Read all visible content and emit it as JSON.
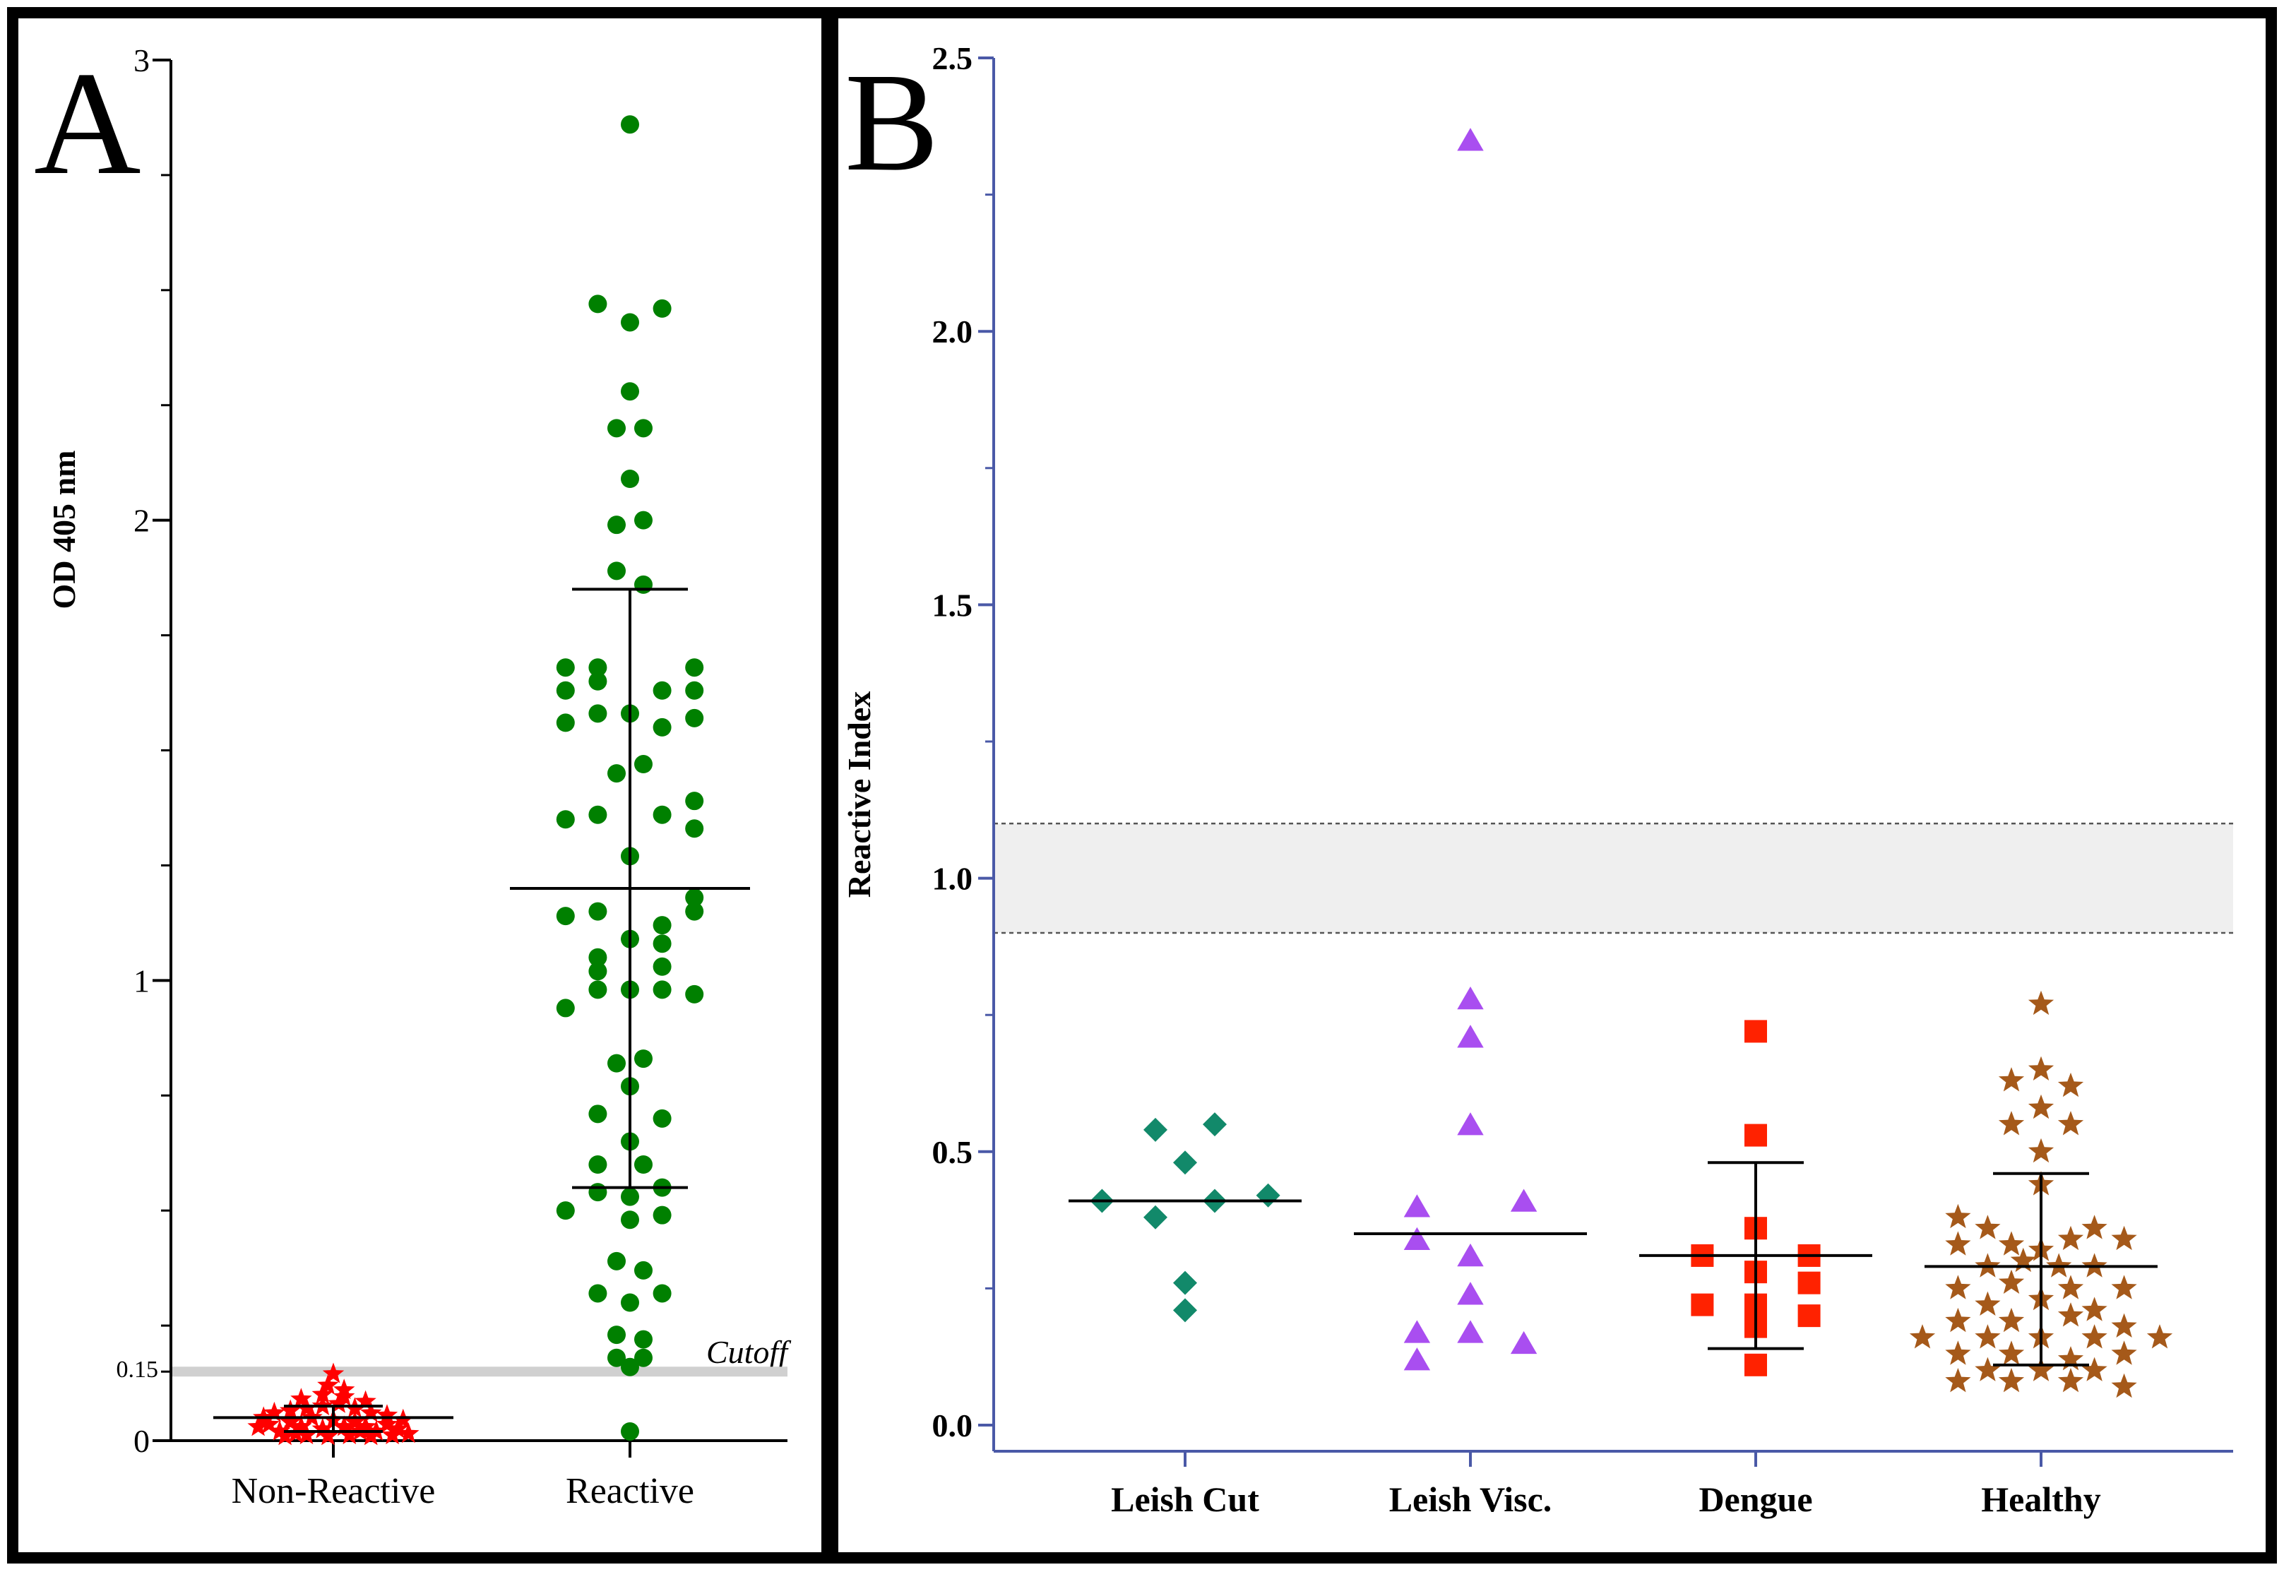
{
  "chart_data": [
    {
      "panel": "A",
      "type": "scatter",
      "panel_label": "A",
      "ylabel": "OD 405 nm",
      "ylim": [
        0,
        3
      ],
      "yticks": [
        "0",
        "1",
        "2",
        "3"
      ],
      "cutoff_tick_label": "0.15",
      "cutoff_value": 0.15,
      "cutoff_label": "Cutoff",
      "categories": [
        "Non-Reactive",
        "Reactive"
      ],
      "colors": {
        "Non-Reactive": "#ff0000",
        "Reactive": "#008000"
      },
      "markers": {
        "Non-Reactive": "star",
        "Reactive": "circle"
      },
      "summary": [
        {
          "group": "Non-Reactive",
          "mean": 0.05,
          "sd_low": 0.02,
          "sd_high": 0.075
        },
        {
          "group": "Reactive",
          "mean": 1.2,
          "sd_low": 0.55,
          "sd_high": 1.85
        }
      ],
      "series": [
        {
          "name": "Non-Reactive",
          "points": [
            [
              -0.28,
              0.03
            ],
            [
              -0.24,
              0.035
            ],
            [
              -0.2,
              0.02
            ],
            [
              -0.16,
              0.04
            ],
            [
              -0.12,
              0.03
            ],
            [
              -0.08,
              0.05
            ],
            [
              -0.04,
              0.025
            ],
            [
              0.0,
              0.045
            ],
            [
              0.04,
              0.03
            ],
            [
              0.08,
              0.04
            ],
            [
              0.12,
              0.03
            ],
            [
              0.16,
              0.02
            ],
            [
              0.2,
              0.035
            ],
            [
              0.24,
              0.025
            ],
            [
              0.28,
              0.015
            ],
            [
              -0.22,
              0.06
            ],
            [
              -0.16,
              0.065
            ],
            [
              -0.1,
              0.07
            ],
            [
              -0.04,
              0.075
            ],
            [
              0.02,
              0.08
            ],
            [
              0.08,
              0.07
            ],
            [
              0.14,
              0.06
            ],
            [
              0.2,
              0.055
            ],
            [
              -0.12,
              0.09
            ],
            [
              -0.04,
              0.1
            ],
            [
              0.04,
              0.095
            ],
            [
              0.12,
              0.085
            ],
            [
              -0.02,
              0.12
            ],
            [
              0.04,
              0.11
            ],
            [
              0.0,
              0.145
            ],
            [
              -0.18,
              0.01
            ],
            [
              -0.1,
              0.012
            ],
            [
              -0.02,
              0.01
            ],
            [
              0.06,
              0.012
            ],
            [
              0.14,
              0.01
            ],
            [
              0.22,
              0.012
            ],
            [
              -0.26,
              0.05
            ],
            [
              0.26,
              0.045
            ],
            [
              -0.14,
              0.015
            ],
            [
              0.1,
              0.02
            ]
          ]
        },
        {
          "name": "Reactive",
          "points": [
            [
              0.0,
              2.86
            ],
            [
              -0.12,
              2.47
            ],
            [
              0.0,
              2.43
            ],
            [
              0.12,
              2.46
            ],
            [
              0.0,
              2.28
            ],
            [
              -0.05,
              2.2
            ],
            [
              0.05,
              2.2
            ],
            [
              0.0,
              2.09
            ],
            [
              -0.05,
              1.99
            ],
            [
              0.05,
              2.0
            ],
            [
              -0.05,
              1.89
            ],
            [
              0.05,
              1.86
            ],
            [
              -0.24,
              1.68
            ],
            [
              -0.12,
              1.68
            ],
            [
              0.12,
              1.63
            ],
            [
              0.24,
              1.68
            ],
            [
              -0.24,
              1.63
            ],
            [
              -0.12,
              1.65
            ],
            [
              0.24,
              1.63
            ],
            [
              -0.24,
              1.56
            ],
            [
              -0.12,
              1.58
            ],
            [
              0.0,
              1.58
            ],
            [
              0.12,
              1.55
            ],
            [
              0.24,
              1.57
            ],
            [
              -0.05,
              1.45
            ],
            [
              0.05,
              1.47
            ],
            [
              -0.24,
              1.35
            ],
            [
              -0.12,
              1.36
            ],
            [
              0.12,
              1.36
            ],
            [
              0.24,
              1.39
            ],
            [
              0.24,
              1.33
            ],
            [
              0.0,
              1.27
            ],
            [
              -0.24,
              1.14
            ],
            [
              -0.12,
              1.15
            ],
            [
              0.12,
              1.12
            ],
            [
              0.24,
              1.18
            ],
            [
              0.24,
              1.15
            ],
            [
              0.12,
              1.08
            ],
            [
              0.0,
              1.09
            ],
            [
              -0.12,
              1.05
            ],
            [
              -0.12,
              1.02
            ],
            [
              0.12,
              1.03
            ],
            [
              -0.24,
              0.94
            ],
            [
              -0.12,
              0.98
            ],
            [
              0.0,
              0.98
            ],
            [
              0.12,
              0.98
            ],
            [
              0.24,
              0.97
            ],
            [
              -0.05,
              0.82
            ],
            [
              0.05,
              0.83
            ],
            [
              0.0,
              0.77
            ],
            [
              -0.12,
              0.71
            ],
            [
              0.12,
              0.7
            ],
            [
              0.0,
              0.65
            ],
            [
              -0.12,
              0.6
            ],
            [
              0.05,
              0.6
            ],
            [
              -0.12,
              0.54
            ],
            [
              0.0,
              0.53
            ],
            [
              0.12,
              0.55
            ],
            [
              0.12,
              0.49
            ],
            [
              -0.24,
              0.5
            ],
            [
              0.0,
              0.48
            ],
            [
              -0.05,
              0.39
            ],
            [
              0.05,
              0.37
            ],
            [
              -0.12,
              0.32
            ],
            [
              0.12,
              0.32
            ],
            [
              0.0,
              0.3
            ],
            [
              -0.05,
              0.23
            ],
            [
              0.05,
              0.22
            ],
            [
              -0.05,
              0.18
            ],
            [
              0.05,
              0.18
            ],
            [
              0.0,
              0.16
            ],
            [
              0.0,
              0.02
            ]
          ]
        }
      ]
    },
    {
      "panel": "B",
      "type": "scatter",
      "panel_label": "B",
      "ylabel": "Reactive Index",
      "ylim": [
        0,
        2.5
      ],
      "yticks": [
        "0.0",
        "0.5",
        "1.0",
        "1.5",
        "2.0",
        "2.5"
      ],
      "grey_zone": [
        0.9,
        1.1
      ],
      "categories": [
        "Leish Cut",
        "Leish Visc.",
        "Dengue",
        "Healthy"
      ],
      "colors": {
        "Leish Cut": "#12896a",
        "Leish Visc.": "#a94ef0",
        "Dengue": "#ff2200",
        "Healthy": "#a5591a"
      },
      "markers": {
        "Leish Cut": "diamond",
        "Leish Visc.": "triangle",
        "Dengue": "square",
        "Healthy": "star"
      },
      "summary": [
        {
          "group": "Leish Cut",
          "median": 0.41
        },
        {
          "group": "Leish Visc.",
          "median": 0.35
        },
        {
          "group": "Dengue",
          "mean": 0.31,
          "sd_low": 0.14,
          "sd_high": 0.48
        },
        {
          "group": "Healthy",
          "mean": 0.29,
          "sd_low": 0.11,
          "sd_high": 0.46
        }
      ],
      "series": [
        {
          "name": "Leish Cut",
          "points": [
            [
              -0.1,
              0.54
            ],
            [
              0.1,
              0.55
            ],
            [
              0.0,
              0.48
            ],
            [
              -0.28,
              0.41
            ],
            [
              0.1,
              0.41
            ],
            [
              0.28,
              0.42
            ],
            [
              -0.1,
              0.38
            ],
            [
              0.0,
              0.26
            ],
            [
              0.0,
              0.21
            ]
          ]
        },
        {
          "name": "Leish Visc.",
          "points": [
            [
              0.0,
              2.35
            ],
            [
              0.0,
              0.78
            ],
            [
              0.0,
              0.71
            ],
            [
              0.0,
              0.55
            ],
            [
              -0.18,
              0.4
            ],
            [
              0.18,
              0.41
            ],
            [
              -0.18,
              0.34
            ],
            [
              0.0,
              0.31
            ],
            [
              0.0,
              0.24
            ],
            [
              -0.18,
              0.17
            ],
            [
              0.0,
              0.17
            ],
            [
              0.18,
              0.15
            ],
            [
              -0.18,
              0.12
            ]
          ]
        },
        {
          "name": "Dengue",
          "points": [
            [
              0.0,
              0.72
            ],
            [
              0.0,
              0.53
            ],
            [
              0.0,
              0.36
            ],
            [
              -0.18,
              0.31
            ],
            [
              0.18,
              0.31
            ],
            [
              0.0,
              0.28
            ],
            [
              0.18,
              0.26
            ],
            [
              -0.18,
              0.22
            ],
            [
              0.0,
              0.22
            ],
            [
              0.18,
              0.2
            ],
            [
              0.0,
              0.18
            ],
            [
              0.0,
              0.11
            ]
          ]
        },
        {
          "name": "Healthy",
          "points": [
            [
              0.0,
              0.77
            ],
            [
              0.0,
              0.65
            ],
            [
              -0.1,
              0.63
            ],
            [
              0.1,
              0.62
            ],
            [
              0.0,
              0.58
            ],
            [
              -0.1,
              0.55
            ],
            [
              0.1,
              0.55
            ],
            [
              0.0,
              0.5
            ],
            [
              0.0,
              0.44
            ],
            [
              -0.28,
              0.38
            ],
            [
              -0.18,
              0.36
            ],
            [
              0.18,
              0.36
            ],
            [
              -0.28,
              0.33
            ],
            [
              -0.1,
              0.33
            ],
            [
              0.1,
              0.34
            ],
            [
              0.28,
              0.34
            ],
            [
              0.0,
              0.32
            ],
            [
              -0.18,
              0.29
            ],
            [
              -0.06,
              0.3
            ],
            [
              0.06,
              0.29
            ],
            [
              0.18,
              0.29
            ],
            [
              -0.28,
              0.25
            ],
            [
              -0.1,
              0.26
            ],
            [
              0.1,
              0.25
            ],
            [
              0.28,
              0.25
            ],
            [
              -0.18,
              0.22
            ],
            [
              0.0,
              0.23
            ],
            [
              0.18,
              0.21
            ],
            [
              -0.28,
              0.19
            ],
            [
              -0.1,
              0.19
            ],
            [
              0.1,
              0.2
            ],
            [
              0.28,
              0.18
            ],
            [
              -0.4,
              0.16
            ],
            [
              -0.18,
              0.16
            ],
            [
              0.0,
              0.16
            ],
            [
              0.18,
              0.16
            ],
            [
              0.4,
              0.16
            ],
            [
              -0.28,
              0.13
            ],
            [
              -0.1,
              0.13
            ],
            [
              0.1,
              0.12
            ],
            [
              0.28,
              0.13
            ],
            [
              -0.18,
              0.1
            ],
            [
              0.0,
              0.1
            ],
            [
              0.18,
              0.1
            ],
            [
              -0.28,
              0.08
            ],
            [
              -0.1,
              0.08
            ],
            [
              0.1,
              0.08
            ],
            [
              0.28,
              0.07
            ]
          ]
        }
      ]
    }
  ]
}
